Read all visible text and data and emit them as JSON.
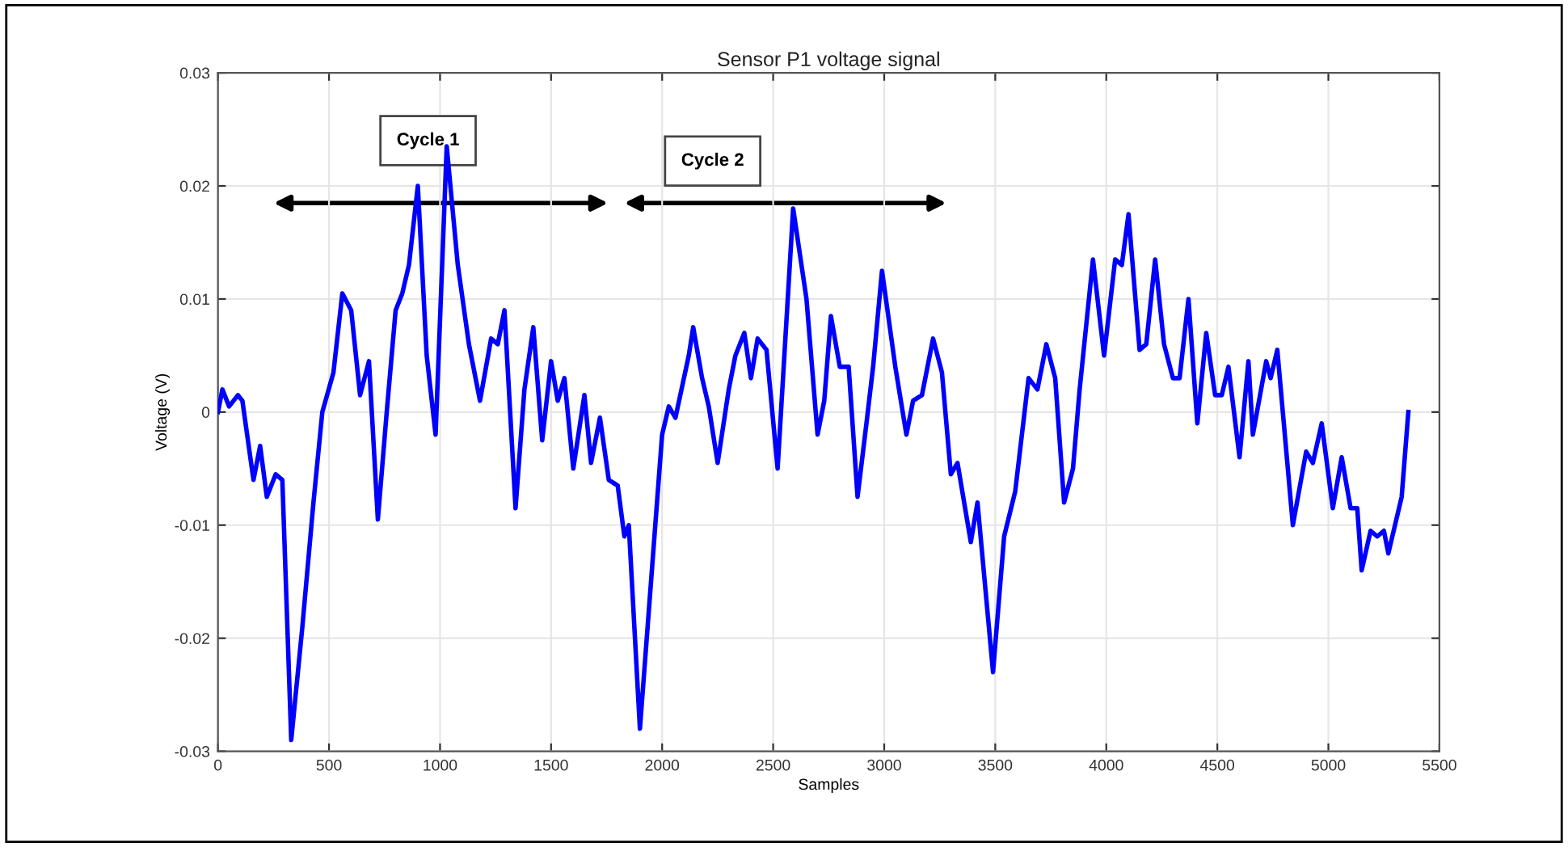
{
  "chart_data": {
    "type": "line",
    "title": "Sensor P1 voltage signal",
    "xlabel": "Samples",
    "ylabel": "Voltage (V)",
    "annotations": [
      "Cycle 1",
      "Cycle 2"
    ],
    "series": [
      {
        "color": "#0000ff",
        "x": [
          0,
          20,
          50,
          90,
          110,
          160,
          190,
          220,
          260,
          290,
          330,
          380,
          430,
          470,
          520,
          560,
          600,
          640,
          680,
          720,
          760,
          800,
          830,
          860,
          900,
          940,
          980,
          1030,
          1080,
          1130,
          1180,
          1230,
          1260,
          1290,
          1340,
          1380,
          1420,
          1460,
          1500,
          1530,
          1560,
          1600,
          1650,
          1680,
          1720,
          1760,
          1800,
          1830,
          1850,
          1900,
          1950,
          2000,
          2030,
          2060,
          2120,
          2140,
          2180,
          2210,
          2250,
          2300,
          2330,
          2370,
          2400,
          2430,
          2470,
          2520,
          2590,
          2650,
          2700,
          2730,
          2760,
          2800,
          2840,
          2880,
          2920,
          2950,
          2990,
          3050,
          3100,
          3130,
          3170,
          3220,
          3260,
          3300,
          3330,
          3390,
          3420,
          3490,
          3540,
          3590,
          3650,
          3690,
          3730,
          3770,
          3810,
          3850,
          3880,
          3940,
          3990,
          4040,
          4070,
          4100,
          4150,
          4180,
          4220,
          4260,
          4300,
          4330,
          4370,
          4410,
          4450,
          4490,
          4520,
          4550,
          4600,
          4640,
          4660,
          4720,
          4740,
          4770,
          4840,
          4900,
          4930,
          4970,
          5020,
          5060,
          5100,
          5130,
          5150,
          5190,
          5220,
          5250,
          5270,
          5330,
          5360
        ],
        "values": [
          0,
          0.002,
          0.0005,
          0.0015,
          0.001,
          -0.006,
          -0.003,
          -0.0075,
          -0.0055,
          -0.006,
          -0.029,
          -0.019,
          -0.008,
          0,
          0.0035,
          0.0105,
          0.009,
          0.0015,
          0.0045,
          -0.0095,
          0,
          0.009,
          0.0105,
          0.013,
          0.02,
          0.005,
          -0.002,
          0.0235,
          0.013,
          0.006,
          0.001,
          0.0065,
          0.006,
          0.009,
          -0.0085,
          0.002,
          0.0075,
          -0.0025,
          0.0045,
          0.001,
          0.003,
          -0.005,
          0.0015,
          -0.0045,
          -0.0005,
          -0.006,
          -0.0065,
          -0.011,
          -0.01,
          -0.028,
          -0.015,
          -0.002,
          0.0005,
          -0.0005,
          0.005,
          0.0075,
          0.003,
          0.0005,
          -0.0045,
          0.002,
          0.005,
          0.007,
          0.003,
          0.0065,
          0.0055,
          -0.005,
          0.018,
          0.01,
          -0.002,
          0.001,
          0.0085,
          0.004,
          0.004,
          -0.0075,
          -0.001,
          0.004,
          0.0125,
          0.004,
          -0.002,
          0.001,
          0.0015,
          0.0065,
          0.0035,
          -0.0055,
          -0.0045,
          -0.0115,
          -0.008,
          -0.023,
          -0.011,
          -0.007,
          0.003,
          0.002,
          0.006,
          0.003,
          -0.008,
          -0.005,
          0.002,
          0.0135,
          0.005,
          0.0135,
          0.013,
          0.0175,
          0.0055,
          0.006,
          0.0135,
          0.006,
          0.003,
          0.003,
          0.01,
          -0.001,
          0.007,
          0.0015,
          0.0015,
          0.004,
          -0.004,
          0.0045,
          -0.002,
          0.0045,
          0.003,
          0.0055,
          -0.01,
          -0.0035,
          -0.0045,
          -0.001,
          -0.0085,
          -0.004,
          -0.0085,
          -0.0085,
          -0.014,
          -0.0105,
          -0.011,
          -0.0105,
          -0.0125,
          -0.0075,
          0
        ]
      }
    ],
    "xlim": [
      0,
      5500
    ],
    "xticks": [
      0,
      500,
      1000,
      1500,
      2000,
      2500,
      3000,
      3500,
      4000,
      4500,
      5000,
      5500
    ],
    "ylim": [
      -0.03,
      0.03
    ],
    "yticks": [
      -0.03,
      -0.02,
      -0.01,
      0,
      0.01,
      0.02,
      0.03
    ],
    "grid": true,
    "legend": false,
    "marker": "none",
    "line_style": "solid"
  }
}
